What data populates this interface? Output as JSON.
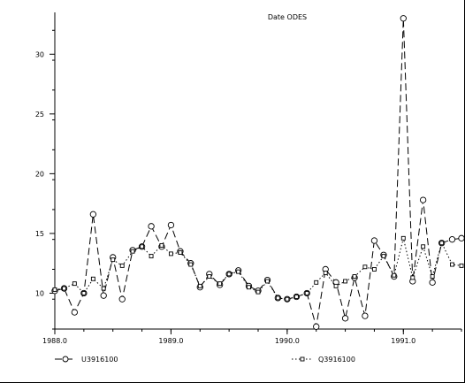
{
  "chart_data": {
    "type": "line",
    "title": "Date ODES",
    "xlim": [
      1988.0,
      1991.5
    ],
    "ylim": [
      7.0,
      33.5
    ],
    "x_ticks": [
      {
        "value": 1988.0,
        "label": "1988.0"
      },
      {
        "value": 1989.0,
        "label": "1989.0"
      },
      {
        "value": 1990.0,
        "label": "1990.0"
      },
      {
        "value": 1991.0,
        "label": "1991.0"
      }
    ],
    "y_ticks": [
      {
        "value": 10,
        "label": "10"
      },
      {
        "value": 15,
        "label": "15"
      },
      {
        "value": 20,
        "label": "20"
      },
      {
        "value": 25,
        "label": "25"
      },
      {
        "value": 30,
        "label": "30"
      }
    ],
    "series": [
      {
        "name": "U3916100",
        "style": "dashed",
        "marker": "circle",
        "color": "#000000",
        "x": [
          1988.0,
          1988.08,
          1988.17,
          1988.25,
          1988.33,
          1988.42,
          1988.5,
          1988.58,
          1988.67,
          1988.75,
          1988.83,
          1988.92,
          1989.0,
          1989.08,
          1989.17,
          1989.25,
          1989.33,
          1989.42,
          1989.5,
          1989.58,
          1989.67,
          1989.75,
          1989.83,
          1989.92,
          1990.0,
          1990.08,
          1990.17,
          1990.25,
          1990.33,
          1990.42,
          1990.5,
          1990.58,
          1990.67,
          1990.75,
          1990.83,
          1990.92,
          1991.0,
          1991.08,
          1991.17,
          1991.25,
          1991.33,
          1991.42,
          1991.5
        ],
        "y": [
          10.2,
          10.4,
          8.4,
          10.0,
          16.6,
          9.8,
          13.0,
          9.5,
          13.6,
          13.9,
          15.6,
          13.9,
          15.7,
          13.5,
          12.5,
          10.5,
          11.6,
          10.7,
          11.6,
          11.9,
          10.6,
          10.2,
          11.1,
          9.6,
          9.5,
          9.7,
          10.0,
          7.2,
          12.0,
          10.9,
          7.9,
          11.3,
          8.1,
          14.4,
          13.2,
          11.4,
          33.0,
          11.0,
          17.8,
          10.9,
          14.2,
          14.5,
          14.6
        ]
      },
      {
        "name": "Q3916100",
        "style": "dotted",
        "marker": "square",
        "color": "#000000",
        "x": [
          1988.0,
          1988.08,
          1988.17,
          1988.25,
          1988.33,
          1988.42,
          1988.5,
          1988.58,
          1988.67,
          1988.75,
          1988.83,
          1988.92,
          1989.0,
          1989.08,
          1989.17,
          1989.25,
          1989.33,
          1989.42,
          1989.5,
          1989.58,
          1989.67,
          1989.75,
          1989.83,
          1989.92,
          1990.0,
          1990.08,
          1990.17,
          1990.25,
          1990.33,
          1990.42,
          1990.5,
          1990.58,
          1990.67,
          1990.75,
          1990.83,
          1990.92,
          1991.0,
          1991.08,
          1991.17,
          1991.25,
          1991.33,
          1991.42,
          1991.5
        ],
        "y": [
          10.3,
          10.4,
          10.8,
          10.0,
          11.2,
          10.4,
          12.8,
          12.3,
          13.5,
          13.9,
          13.1,
          14.0,
          13.3,
          13.4,
          12.4,
          10.6,
          11.4,
          10.8,
          11.6,
          11.8,
          10.5,
          10.1,
          11.0,
          9.6,
          9.5,
          9.7,
          10.0,
          10.9,
          11.7,
          10.6,
          11.0,
          11.4,
          12.2,
          12.0,
          13.1,
          11.5,
          14.6,
          11.3,
          13.9,
          11.4,
          14.2,
          12.4,
          12.3
        ]
      }
    ],
    "legend_position": "bottom"
  }
}
